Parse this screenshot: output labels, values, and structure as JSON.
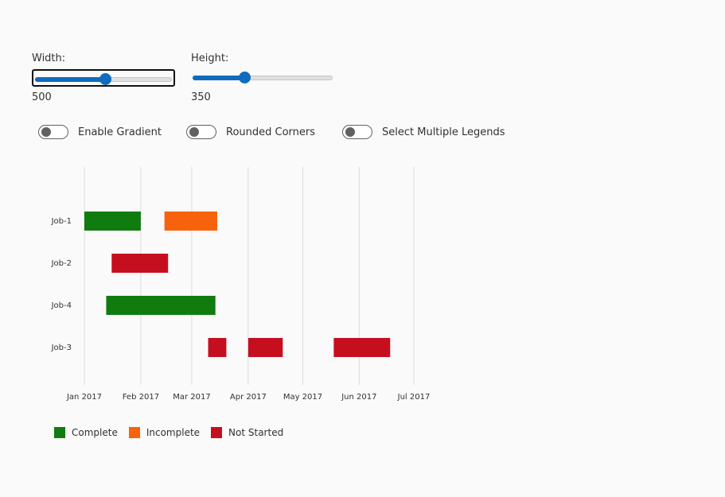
{
  "controls": {
    "width": {
      "label": "Width:",
      "value": "500",
      "fraction": 0.5
    },
    "height": {
      "label": "Height:",
      "value": "350",
      "fraction": 0.36
    },
    "toggles": [
      {
        "label": "Enable Gradient",
        "on": false
      },
      {
        "label": "Rounded Corners",
        "on": false
      },
      {
        "label": "Select Multiple Legends",
        "on": false
      }
    ]
  },
  "chart_data": {
    "type": "bar",
    "subtype": "gantt",
    "orientation": "horizontal",
    "x_axis": {
      "type": "date",
      "ticks": [
        "Jan 2017",
        "Feb 2017",
        "Mar 2017",
        "Apr 2017",
        "May 2017",
        "Jun 2017",
        "Jul 2017"
      ],
      "range": [
        "2017-01-01",
        "2017-07-01"
      ]
    },
    "categories": [
      "Job-1",
      "Job-2",
      "Job-4",
      "Job-3"
    ],
    "series": [
      {
        "name": "Complete",
        "color": "#107c10"
      },
      {
        "name": "Incomplete",
        "color": "#f7630c"
      },
      {
        "name": "Not Started",
        "color": "#c50f1f"
      }
    ],
    "tasks": [
      {
        "job": "Job-1",
        "status": "Complete",
        "start": "2017-01-01",
        "end": "2017-02-01"
      },
      {
        "job": "Job-1",
        "status": "Incomplete",
        "start": "2017-02-14",
        "end": "2017-03-15"
      },
      {
        "job": "Job-2",
        "status": "Not Started",
        "start": "2017-01-16",
        "end": "2017-02-16"
      },
      {
        "job": "Job-4",
        "status": "Complete",
        "start": "2017-01-13",
        "end": "2017-03-14"
      },
      {
        "job": "Job-3",
        "status": "Not Started",
        "start": "2017-03-10",
        "end": "2017-03-20"
      },
      {
        "job": "Job-3",
        "status": "Not Started",
        "start": "2017-04-01",
        "end": "2017-04-20"
      },
      {
        "job": "Job-3",
        "status": "Not Started",
        "start": "2017-05-18",
        "end": "2017-06-18"
      }
    ],
    "grid": true,
    "legend_position": "bottom-left"
  }
}
